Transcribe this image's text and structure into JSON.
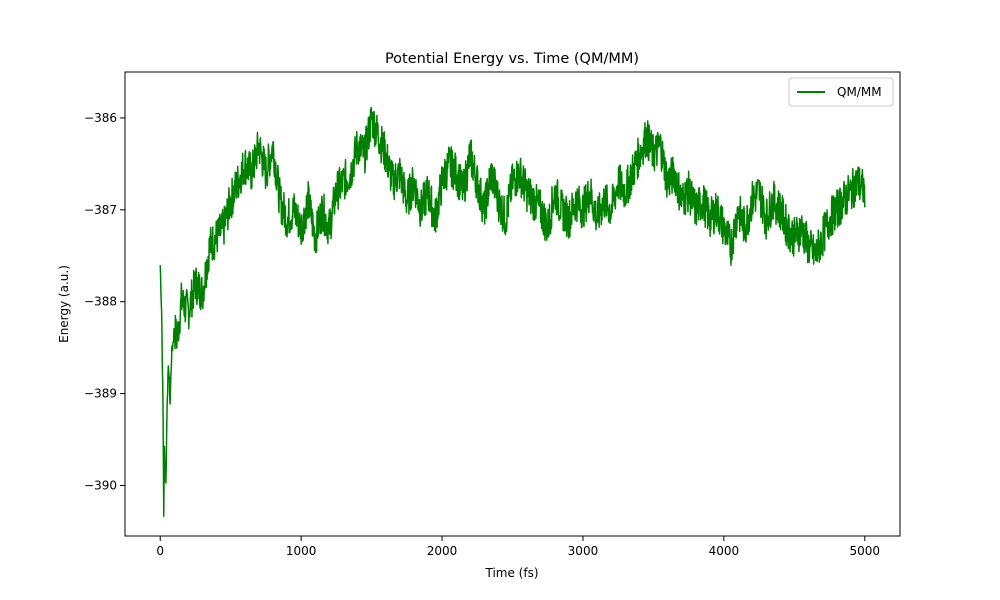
{
  "chart_data": {
    "type": "line",
    "title": "Potential Energy vs. Time (QM/MM)",
    "xlabel": "Time (fs)",
    "ylabel": "Energy (a.u.)",
    "xlim": [
      -250,
      5250
    ],
    "ylim": [
      -390.55,
      -385.5
    ],
    "xticks": [
      0,
      1000,
      2000,
      3000,
      4000,
      5000
    ],
    "xtick_labels": [
      "0",
      "1000",
      "2000",
      "3000",
      "4000",
      "5000"
    ],
    "yticks": [
      -390,
      -389,
      -388,
      -387,
      -386
    ],
    "ytick_labels": [
      "−390",
      "−389",
      "−388",
      "−387",
      "−386"
    ],
    "grid": false,
    "legend": {
      "position": "top-right",
      "entries": [
        "QM/MM"
      ]
    },
    "series": [
      {
        "name": "QM/MM",
        "color": "#008000",
        "x": [
          0,
          10,
          20,
          25,
          30,
          40,
          50,
          60,
          70,
          80,
          100,
          120,
          150,
          200,
          250,
          300,
          350,
          400,
          450,
          500,
          550,
          600,
          650,
          700,
          750,
          800,
          850,
          900,
          950,
          1000,
          1050,
          1100,
          1150,
          1200,
          1250,
          1300,
          1350,
          1400,
          1450,
          1500,
          1550,
          1600,
          1650,
          1700,
          1750,
          1800,
          1850,
          1900,
          1950,
          2000,
          2050,
          2100,
          2150,
          2200,
          2250,
          2300,
          2350,
          2400,
          2450,
          2500,
          2550,
          2600,
          2650,
          2700,
          2750,
          2800,
          2850,
          2900,
          2950,
          3000,
          3050,
          3100,
          3150,
          3200,
          3250,
          3300,
          3350,
          3400,
          3450,
          3500,
          3550,
          3600,
          3650,
          3700,
          3750,
          3800,
          3850,
          3900,
          3950,
          4000,
          4050,
          4100,
          4150,
          4200,
          4250,
          4300,
          4350,
          4400,
          4450,
          4500,
          4550,
          4600,
          4650,
          4700,
          4750,
          4800,
          4850,
          4900,
          4950,
          5000
        ],
        "y": [
          -387.6,
          -388.1,
          -389.2,
          -390.3,
          -389.6,
          -390.0,
          -389.0,
          -388.7,
          -389.1,
          -388.6,
          -388.3,
          -388.4,
          -388.0,
          -388.1,
          -387.8,
          -387.9,
          -387.4,
          -387.3,
          -387.2,
          -386.9,
          -386.7,
          -386.5,
          -386.6,
          -386.3,
          -386.6,
          -386.3,
          -386.9,
          -387.1,
          -387.0,
          -387.2,
          -386.9,
          -387.3,
          -387.0,
          -387.2,
          -386.8,
          -386.7,
          -386.6,
          -386.3,
          -386.4,
          -386.0,
          -386.2,
          -386.4,
          -386.7,
          -386.6,
          -386.9,
          -386.7,
          -387.0,
          -386.8,
          -387.1,
          -386.7,
          -386.5,
          -386.6,
          -386.8,
          -386.4,
          -386.7,
          -387.0,
          -386.6,
          -386.9,
          -387.1,
          -386.7,
          -386.6,
          -386.8,
          -386.9,
          -387.0,
          -387.2,
          -386.8,
          -387.0,
          -387.1,
          -386.9,
          -387.0,
          -386.8,
          -387.1,
          -386.9,
          -387.0,
          -386.7,
          -386.8,
          -386.6,
          -386.4,
          -386.2,
          -386.4,
          -386.3,
          -386.7,
          -386.6,
          -386.9,
          -386.8,
          -387.0,
          -386.9,
          -387.1,
          -387.0,
          -387.2,
          -387.4,
          -387.0,
          -387.2,
          -386.9,
          -386.8,
          -387.1,
          -386.9,
          -387.0,
          -387.2,
          -387.3,
          -387.2,
          -387.4,
          -387.5,
          -387.3,
          -387.1,
          -387.0,
          -386.9,
          -386.8,
          -386.7,
          -386.8
        ]
      }
    ]
  }
}
